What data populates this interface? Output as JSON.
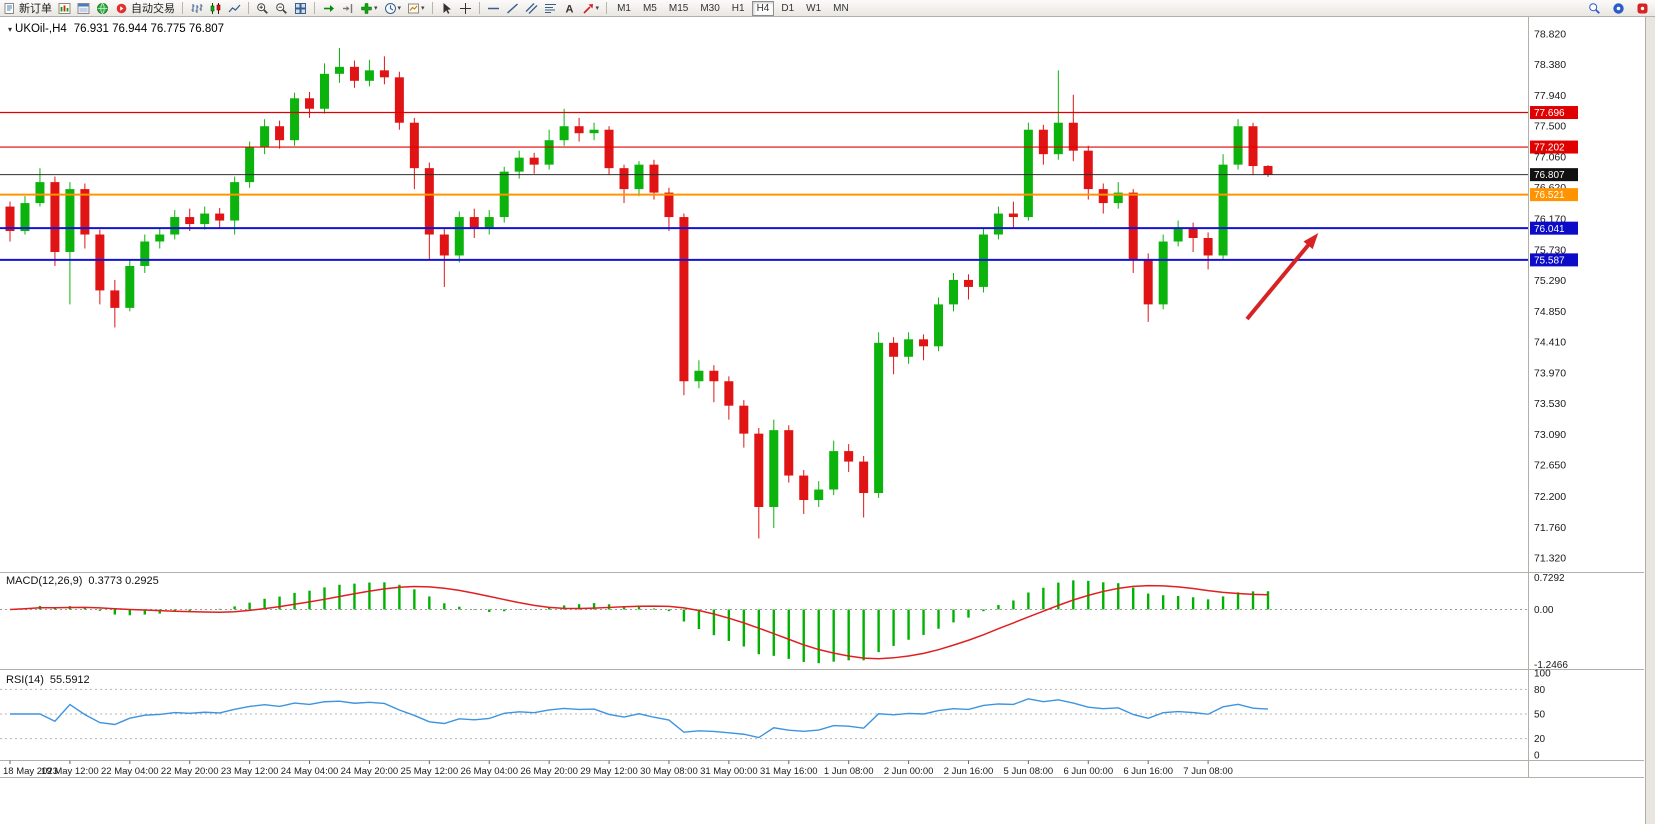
{
  "toolbar": {
    "new_order_label": "新订单",
    "auto_trading_label": "自动交易",
    "timeframes": [
      "M1",
      "M5",
      "M15",
      "M30",
      "H1",
      "H4",
      "D1",
      "W1",
      "MN"
    ],
    "active_timeframe": "H4",
    "caret_glyph": "▾"
  },
  "chart_data": {
    "type": "candlestick",
    "symbol": "UKOil",
    "period": "H4",
    "title": "UKOil-,H4",
    "ohlc_text": "76.931 76.944 76.775 76.807",
    "current": {
      "open": 76.931,
      "high": 76.944,
      "low": 76.775,
      "close": 76.807
    },
    "up_color": "#0db30d",
    "down_color": "#e01414",
    "price_max": 78.82,
    "price_min": 71.32,
    "price_axis_labels": [
      "78.820",
      "78.380",
      "77.940",
      "77.500",
      "77.060",
      "76.620",
      "76.170",
      "75.730",
      "75.290",
      "74.850",
      "74.410",
      "73.970",
      "73.530",
      "73.090",
      "72.650",
      "72.200",
      "71.760",
      "71.320"
    ],
    "time_axis_labels": [
      "18 May 2023",
      "19 May 12:00",
      "22 May 04:00",
      "22 May 20:00",
      "23 May 12:00",
      "24 May 04:00",
      "24 May 20:00",
      "25 May 12:00",
      "26 May 04:00",
      "26 May 20:00",
      "29 May 12:00",
      "30 May 08:00",
      "31 May 00:00",
      "31 May 16:00",
      "1 Jun 08:00",
      "2 Jun 00:00",
      "2 Jun 16:00",
      "5 Jun 08:00",
      "6 Jun 00:00",
      "6 Jun 16:00",
      "7 Jun 08:00"
    ],
    "time_label_step": 4,
    "hlines": [
      {
        "price": 77.696,
        "label": "77.696",
        "color": "#e00000",
        "tag_bg": "#e00000",
        "width": 1.2,
        "role": "resistance-line"
      },
      {
        "price": 77.202,
        "label": "77.202",
        "color": "#e00000",
        "tag_bg": "#e00000",
        "width": 1.2,
        "role": "resistance-line"
      },
      {
        "price": 76.807,
        "label": "76.807",
        "color": "#2e2e2e",
        "tag_bg": "#111111",
        "width": 1,
        "role": "current-price-line"
      },
      {
        "price": 76.521,
        "label": "76.521",
        "color": "#ff9400",
        "tag_bg": "#ff9400",
        "width": 2,
        "role": "pivot-line"
      },
      {
        "price": 76.041,
        "label": "76.041",
        "color": "#1212d8",
        "tag_bg": "#0b0bc8",
        "width": 2,
        "role": "support-line"
      },
      {
        "price": 75.587,
        "label": "75.587",
        "color": "#1212d8",
        "tag_bg": "#0b0bc8",
        "width": 2,
        "role": "support-line"
      }
    ],
    "arrow": {
      "color": "#d62424",
      "from": [
        1247,
        302
      ],
      "to": [
        1310,
        226
      ]
    },
    "candles": [
      [
        76.35,
        76.42,
        75.85,
        76.0
      ],
      [
        76.0,
        76.5,
        75.95,
        76.4
      ],
      [
        76.4,
        76.9,
        76.35,
        76.7
      ],
      [
        76.7,
        76.78,
        75.5,
        75.7
      ],
      [
        75.7,
        76.7,
        74.95,
        76.6
      ],
      [
        76.6,
        76.68,
        75.75,
        75.95
      ],
      [
        75.95,
        76.02,
        74.95,
        75.15
      ],
      [
        75.15,
        75.3,
        74.62,
        74.9
      ],
      [
        74.9,
        75.6,
        74.85,
        75.5
      ],
      [
        75.5,
        75.95,
        75.4,
        75.85
      ],
      [
        75.85,
        76.05,
        75.75,
        75.95
      ],
      [
        75.95,
        76.3,
        75.88,
        76.2
      ],
      [
        76.2,
        76.32,
        76.0,
        76.1
      ],
      [
        76.1,
        76.35,
        76.02,
        76.25
      ],
      [
        76.25,
        76.33,
        76.05,
        76.15
      ],
      [
        76.15,
        76.78,
        75.95,
        76.7
      ],
      [
        76.7,
        77.28,
        76.62,
        77.2
      ],
      [
        77.2,
        77.6,
        77.1,
        77.5
      ],
      [
        77.5,
        77.58,
        77.18,
        77.3
      ],
      [
        77.3,
        77.98,
        77.22,
        77.9
      ],
      [
        77.9,
        77.99,
        77.62,
        77.75
      ],
      [
        77.75,
        78.4,
        77.68,
        78.25
      ],
      [
        78.25,
        78.62,
        78.12,
        78.35
      ],
      [
        78.35,
        78.44,
        78.05,
        78.15
      ],
      [
        78.15,
        78.45,
        78.07,
        78.3
      ],
      [
        78.3,
        78.5,
        78.1,
        78.2
      ],
      [
        78.2,
        78.28,
        77.45,
        77.55
      ],
      [
        77.55,
        77.62,
        76.6,
        76.9
      ],
      [
        76.9,
        76.98,
        75.6,
        75.95
      ],
      [
        75.95,
        76.05,
        75.2,
        75.65
      ],
      [
        75.65,
        76.28,
        75.55,
        76.2
      ],
      [
        76.2,
        76.32,
        75.9,
        76.05
      ],
      [
        76.05,
        76.3,
        75.95,
        76.2
      ],
      [
        76.2,
        76.92,
        76.12,
        76.85
      ],
      [
        76.85,
        77.15,
        76.75,
        77.05
      ],
      [
        77.05,
        77.12,
        76.82,
        76.95
      ],
      [
        76.95,
        77.45,
        76.88,
        77.3
      ],
      [
        77.3,
        77.75,
        77.22,
        77.5
      ],
      [
        77.5,
        77.62,
        77.28,
        77.4
      ],
      [
        77.4,
        77.55,
        77.3,
        77.45
      ],
      [
        77.45,
        77.5,
        76.8,
        76.9
      ],
      [
        76.9,
        76.95,
        76.4,
        76.6
      ],
      [
        76.6,
        77.0,
        76.5,
        76.95
      ],
      [
        76.95,
        77.02,
        76.45,
        76.55
      ],
      [
        76.55,
        76.62,
        76.0,
        76.2
      ],
      [
        76.2,
        76.25,
        73.65,
        73.85
      ],
      [
        73.85,
        74.15,
        73.75,
        74.0
      ],
      [
        74.0,
        74.08,
        73.55,
        73.85
      ],
      [
        73.85,
        73.92,
        73.3,
        73.5
      ],
      [
        73.5,
        73.58,
        72.9,
        73.1
      ],
      [
        73.1,
        73.18,
        71.6,
        72.05
      ],
      [
        72.05,
        73.3,
        71.75,
        73.15
      ],
      [
        73.15,
        73.22,
        72.4,
        72.5
      ],
      [
        72.5,
        72.58,
        71.95,
        72.15
      ],
      [
        72.15,
        72.42,
        72.05,
        72.3
      ],
      [
        72.3,
        73.0,
        72.22,
        72.85
      ],
      [
        72.85,
        72.95,
        72.55,
        72.7
      ],
      [
        72.7,
        72.78,
        71.9,
        72.25
      ],
      [
        72.25,
        74.55,
        72.18,
        74.4
      ],
      [
        74.4,
        74.48,
        73.95,
        74.2
      ],
      [
        74.2,
        74.55,
        74.1,
        74.45
      ],
      [
        74.45,
        74.52,
        74.15,
        74.35
      ],
      [
        74.35,
        75.05,
        74.28,
        74.95
      ],
      [
        74.95,
        75.4,
        74.85,
        75.3
      ],
      [
        75.3,
        75.38,
        75.02,
        75.2
      ],
      [
        75.2,
        76.05,
        75.12,
        75.95
      ],
      [
        75.95,
        76.35,
        75.88,
        76.25
      ],
      [
        76.25,
        76.42,
        76.05,
        76.2
      ],
      [
        76.2,
        77.55,
        76.15,
        77.45
      ],
      [
        77.45,
        77.52,
        76.95,
        77.1
      ],
      [
        77.1,
        78.3,
        77.02,
        77.55
      ],
      [
        77.55,
        77.95,
        77.0,
        77.15
      ],
      [
        77.15,
        77.22,
        76.45,
        76.6
      ],
      [
        76.6,
        76.68,
        76.25,
        76.4
      ],
      [
        76.4,
        76.7,
        76.32,
        76.55
      ],
      [
        76.55,
        76.6,
        75.4,
        75.6
      ],
      [
        75.6,
        75.68,
        74.7,
        74.95
      ],
      [
        74.95,
        75.95,
        74.88,
        75.85
      ],
      [
        75.85,
        76.15,
        75.78,
        76.05
      ],
      [
        76.05,
        76.12,
        75.7,
        75.9
      ],
      [
        75.9,
        75.98,
        75.45,
        75.65
      ],
      [
        75.65,
        77.1,
        75.58,
        76.95
      ],
      [
        76.95,
        77.6,
        76.88,
        77.5
      ],
      [
        77.5,
        77.55,
        76.8,
        76.93
      ],
      [
        76.931,
        76.944,
        76.775,
        76.807
      ]
    ],
    "indicators": {
      "macd": {
        "label": "MACD(12,26,9)",
        "values_text": "0.3773 0.2925",
        "scale_labels": [
          "0.7292",
          "0.00",
          "-1.2466"
        ],
        "max": 0.7292,
        "min": -1.2466,
        "histogram_color": "#00b200",
        "signal_color": "#e02020"
      },
      "rsi": {
        "label": "RSI(14)",
        "value_text": "55.5912",
        "scale_labels": [
          "100",
          "80",
          "50",
          "20",
          "0"
        ],
        "levels": [
          80,
          50,
          20
        ],
        "line_color": "#3d94e0"
      }
    }
  }
}
